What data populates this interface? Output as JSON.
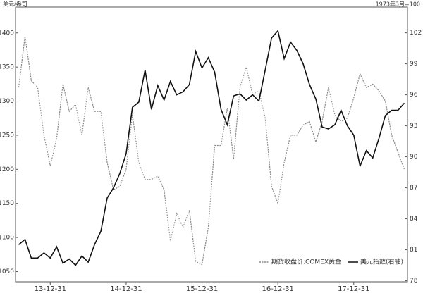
{
  "chart_data": {
    "type": "line",
    "y_label": "美元/盎司",
    "y2_label": "1973年3月=100",
    "categories": [
      null,
      null,
      null,
      null,
      null,
      "13-12-31",
      null,
      null,
      null,
      null,
      null,
      null,
      null,
      null,
      null,
      null,
      null,
      "14-12-31",
      null,
      null,
      null,
      null,
      null,
      null,
      null,
      null,
      null,
      null,
      null,
      "15-12-31",
      null,
      null,
      null,
      null,
      null,
      null,
      null,
      null,
      null,
      null,
      null,
      "16-12-31",
      null,
      null,
      null,
      null,
      null,
      null,
      null,
      null,
      null,
      null,
      null,
      "17-12-31",
      null,
      null,
      null,
      null,
      null,
      null,
      null,
      null
    ],
    "series": [
      {
        "name": "期货收盘价:COMEX黄金",
        "color": "#8c8c8c",
        "dashed": true,
        "values": [
          1320,
          1395,
          1330,
          1320,
          1250,
          1205,
          1245,
          1325,
          1285,
          1295,
          1250,
          1320,
          1285,
          1285,
          1210,
          1170,
          1175,
          1200,
          1280,
          1210,
          1185,
          1185,
          1190,
          1170,
          1095,
          1135,
          1115,
          1140,
          1065,
          1060,
          1115,
          1235,
          1235,
          1290,
          1215,
          1320,
          1350,
          1310,
          1315,
          1275,
          1175,
          1150,
          1210,
          1250,
          1250,
          1265,
          1270,
          1240,
          1270,
          1320,
          1280,
          1270,
          1275,
          1305,
          1340,
          1320,
          1325,
          1315,
          1300,
          1250,
          1225,
          1200
        ]
      },
      {
        "name": "美元指数(右轴)",
        "color": "#111111",
        "dashed": false,
        "axis": "y2",
        "values": [
          81.5,
          82,
          80.2,
          80.2,
          80.7,
          80.2,
          81.3,
          79.7,
          80.1,
          79.5,
          80.4,
          79.8,
          81.5,
          82.8,
          86,
          87,
          88.4,
          90.3,
          94.8,
          95.3,
          98.4,
          94.6,
          96.9,
          95.5,
          97.3,
          96,
          96.3,
          97,
          100.2,
          98.6,
          99.6,
          98.2,
          94.6,
          93.1,
          95.9,
          96.1,
          95.5,
          96,
          95.4,
          98.4,
          101.5,
          102.2,
          99.5,
          101.1,
          100.3,
          99,
          97,
          95.6,
          92.9,
          92.7,
          93.1,
          94.5,
          93,
          92.1,
          89.1,
          90.6,
          89.9,
          91.8,
          94,
          94.5,
          94.5,
          95.2
        ]
      }
    ],
    "ylim": [
      1035,
      1438
    ],
    "yticks": [
      1050,
      1100,
      1150,
      1200,
      1250,
      1300,
      1350,
      1400
    ],
    "y2lim": [
      77.9,
      104.5
    ],
    "y2ticks": [
      78,
      81,
      84,
      87,
      90,
      93,
      96,
      99,
      102
    ],
    "legend": "bottom-right"
  }
}
